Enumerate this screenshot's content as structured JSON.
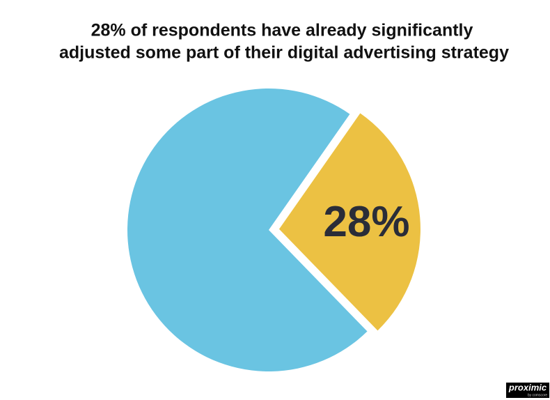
{
  "chart_data": {
    "type": "pie",
    "title": [
      "28% of respondents have already significantly",
      "adjusted some part of their digital advertising strategy"
    ],
    "values": [
      28,
      72
    ],
    "value_labels": [
      "28%",
      null
    ],
    "colors": [
      "#ecc143",
      "#6ac4e2"
    ]
  },
  "logo": {
    "text": "proximic",
    "subtext": "by comscore"
  }
}
